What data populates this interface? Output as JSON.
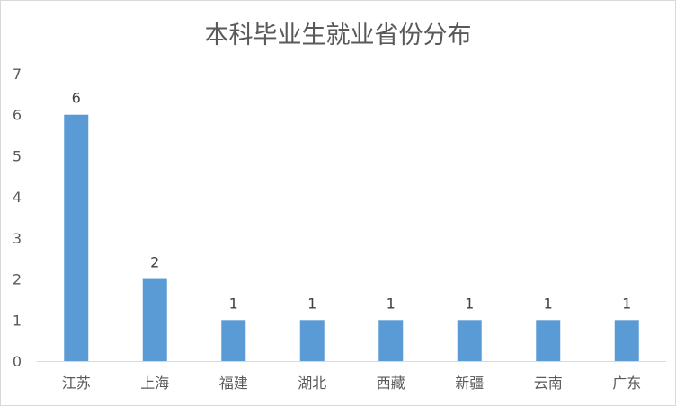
{
  "chart_data": {
    "type": "bar",
    "title": "本科毕业生就业省份分布",
    "xlabel": "",
    "ylabel": "",
    "categories": [
      "江苏",
      "上海",
      "福建",
      "湖北",
      "西藏",
      "新疆",
      "云南",
      "广东"
    ],
    "values": [
      6,
      2,
      1,
      1,
      1,
      1,
      1,
      1
    ],
    "data_labels": [
      "6",
      "2",
      "1",
      "1",
      "1",
      "1",
      "1",
      "1"
    ],
    "ylim": [
      0,
      7
    ],
    "yticks": [
      "0",
      "1",
      "2",
      "3",
      "4",
      "5",
      "6",
      "7"
    ],
    "grid": false,
    "legend": "none",
    "bar_color": "#5b9bd5",
    "axis_color": "#d9d9d9",
    "text_color": "#595959"
  }
}
